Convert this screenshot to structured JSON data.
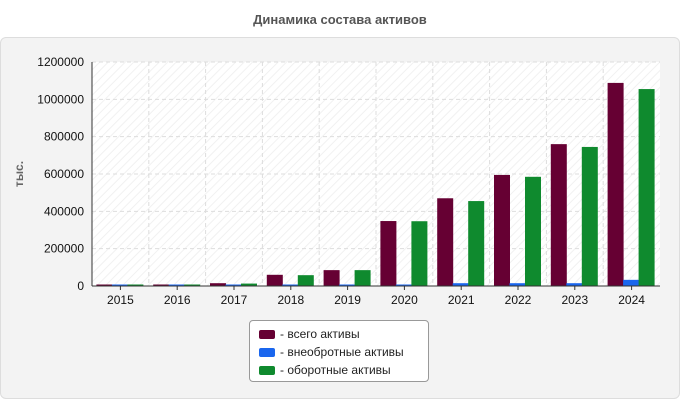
{
  "chart_data": {
    "type": "bar",
    "title": "Динамика состава активов",
    "ylabel": "тыс.",
    "xlabel": "",
    "ylim": [
      0,
      1200000
    ],
    "yticks": [
      0,
      200000,
      400000,
      600000,
      800000,
      1000000,
      1200000
    ],
    "categories": [
      "2015",
      "2016",
      "2017",
      "2018",
      "2019",
      "2020",
      "2021",
      "2022",
      "2023",
      "2024"
    ],
    "series": [
      {
        "name": "- всего активы",
        "color": "#660033",
        "values": [
          4000,
          5000,
          15000,
          60000,
          85000,
          348000,
          470000,
          595000,
          760000,
          1088000
        ]
      },
      {
        "name": "- внеобротные активы",
        "color": "#1a66ee",
        "values": [
          2000,
          2000,
          2000,
          3000,
          3000,
          4000,
          15000,
          15000,
          15000,
          33000
        ]
      },
      {
        "name": "- оборотные активы",
        "color": "#0f8a2e",
        "values": [
          3000,
          3000,
          13000,
          58000,
          85000,
          347000,
          455000,
          585000,
          745000,
          1055000
        ]
      }
    ],
    "grid": true,
    "legend_position": "bottom-center"
  }
}
